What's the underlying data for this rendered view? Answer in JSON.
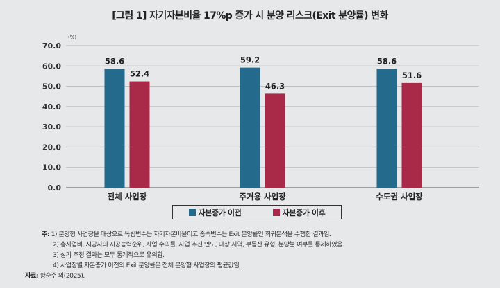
{
  "title": "[그림 1] 자기자본비율 17%p 증가 시 분양 리스크(Exit 분양률) 변화",
  "chart_data": {
    "type": "bar",
    "title": "[그림 1] 자기자본비율 17%p 증가 시 분양 리스크(Exit 분양률) 변화",
    "ylabel": "(%)",
    "xlabel": "",
    "ylim": [
      0,
      70
    ],
    "yticks": [
      "0.0",
      "10.0",
      "20.0",
      "30.0",
      "40.0",
      "50.0",
      "60.0",
      "70.0"
    ],
    "grid": true,
    "legend": "bottom",
    "categories": [
      "전체 사업장",
      "주거용 사업장",
      "수도권 사업장"
    ],
    "series": [
      {
        "name": "자본증가 이전",
        "color": "#236a8c",
        "values": [
          58.6,
          59.2,
          58.6
        ],
        "labels": [
          "58.6",
          "59.2",
          "58.6"
        ]
      },
      {
        "name": "자본증가 이후",
        "color": "#a82a48",
        "values": [
          52.4,
          46.3,
          51.6
        ],
        "labels": [
          "52.4",
          "46.3",
          "51.6"
        ]
      }
    ]
  },
  "notes": {
    "prefix": "주:",
    "lines": [
      "1) 분양형 사업장을 대상으로 독립변수는 자기자본비율이고 종속변수는 Exit 분양률인 회귀분석을 수행한 결과임.",
      "2) 총사업비, 시공사의 시공능력순위, 사업 수익률, 사업 추진 연도, 대상 지역, 부동산 유형, 분양불 여부를 통제하였음.",
      "3) 상기 추정 결과는 모두 통계적으로 유의함.",
      "4) 사업장별 자본증가 이전의 Exit 분양률은 전체 분양형 사업장의 평균값임."
    ],
    "source_label": "자료:",
    "source": "황순주 외(2025)."
  }
}
